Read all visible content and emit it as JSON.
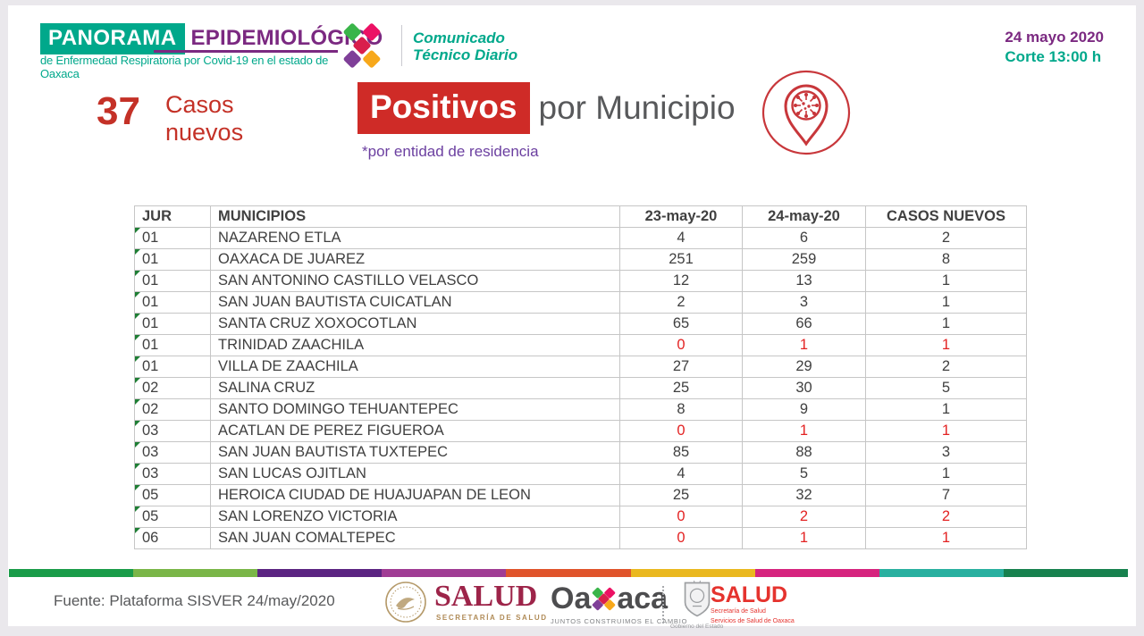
{
  "header": {
    "brand_primary": "PANORAMA",
    "brand_secondary": "EPIDEMIOLÓGICO",
    "brand_subtitle": "de Enfermedad Respiratoria por Covid-19 en el estado de Oaxaca",
    "communique": {
      "line1": "Comunicado",
      "line2": "Técnico Diario"
    },
    "date": "24 mayo 2020",
    "cutoff": "Corte 13:00 h"
  },
  "headline": {
    "new_cases_value": "37",
    "new_cases_label_line1": "Casos",
    "new_cases_label_line2": "nuevos",
    "title_highlight": "Positivos",
    "title_rest": "por Municipio",
    "footnote": "*por entidad de residencia"
  },
  "table": {
    "headers": [
      "JUR",
      "MUNICIPIOS",
      "23-may-20",
      "24-may-20",
      "CASOS NUEVOS"
    ],
    "rows": [
      {
        "jur": "01",
        "municipio": "NAZARENO ETLA",
        "d23": "4",
        "d24": "6",
        "nuevos": "2",
        "red": false
      },
      {
        "jur": "01",
        "municipio": "OAXACA DE JUAREZ",
        "d23": "251",
        "d24": "259",
        "nuevos": "8",
        "red": false
      },
      {
        "jur": "01",
        "municipio": "SAN ANTONINO CASTILLO VELASCO",
        "d23": "12",
        "d24": "13",
        "nuevos": "1",
        "red": false
      },
      {
        "jur": "01",
        "municipio": "SAN JUAN BAUTISTA CUICATLAN",
        "d23": "2",
        "d24": "3",
        "nuevos": "1",
        "red": false
      },
      {
        "jur": "01",
        "municipio": "SANTA CRUZ XOXOCOTLAN",
        "d23": "65",
        "d24": "66",
        "nuevos": "1",
        "red": false
      },
      {
        "jur": "01",
        "municipio": "TRINIDAD ZAACHILA",
        "d23": "0",
        "d24": "1",
        "nuevos": "1",
        "red": true
      },
      {
        "jur": "01",
        "municipio": "VILLA DE ZAACHILA",
        "d23": "27",
        "d24": "29",
        "nuevos": "2",
        "red": false
      },
      {
        "jur": "02",
        "municipio": "SALINA CRUZ",
        "d23": "25",
        "d24": "30",
        "nuevos": "5",
        "red": false
      },
      {
        "jur": "02",
        "municipio": "SANTO DOMINGO TEHUANTEPEC",
        "d23": "8",
        "d24": "9",
        "nuevos": "1",
        "red": false
      },
      {
        "jur": "03",
        "municipio": "ACATLAN DE PEREZ FIGUEROA",
        "d23": "0",
        "d24": "1",
        "nuevos": "1",
        "red": true
      },
      {
        "jur": "03",
        "municipio": "SAN JUAN BAUTISTA TUXTEPEC",
        "d23": "85",
        "d24": "88",
        "nuevos": "3",
        "red": false
      },
      {
        "jur": "03",
        "municipio": "SAN LUCAS OJITLAN",
        "d23": "4",
        "d24": "5",
        "nuevos": "1",
        "red": false
      },
      {
        "jur": "05",
        "municipio": "HEROICA CIUDAD DE HUAJUAPAN DE LEON",
        "d23": "25",
        "d24": "32",
        "nuevos": "7",
        "red": false
      },
      {
        "jur": "05",
        "municipio": "SAN LORENZO VICTORIA",
        "d23": "0",
        "d24": "2",
        "nuevos": "2",
        "red": true
      },
      {
        "jur": "06",
        "municipio": "SAN JUAN COMALTEPEC",
        "d23": "0",
        "d24": "1",
        "nuevos": "1",
        "red": true
      }
    ]
  },
  "stripe_colors": [
    "#1a9c49",
    "#7ab648",
    "#5b2482",
    "#a03c94",
    "#e0542b",
    "#eab81f",
    "#d6247e",
    "#29b0a0",
    "#17814e"
  ],
  "footer": {
    "source": "Fuente: Plataforma SISVER 24/may/2020",
    "salud_federal": {
      "title": "SALUD",
      "subtitle": "SECRETARÍA DE SALUD"
    },
    "oaxaca": {
      "part1": "Oa",
      "part2": "aca",
      "tagline": "JUNTOS CONSTRUIMOS EL CAMBIO"
    },
    "gobierno_label": "Gobierno del Estado",
    "salud_oaxaca": {
      "title": "SALUD",
      "line1": "Secretaría de Salud",
      "line2": "Servicios de Salud de Oaxaca"
    }
  },
  "colors": {
    "teal": "#00a88b",
    "purple": "#7b2981",
    "highlight_red": "#cf2b27",
    "cases_red": "#c43127",
    "note_violet": "#6b3fa0",
    "body_gray": "#58595b"
  }
}
